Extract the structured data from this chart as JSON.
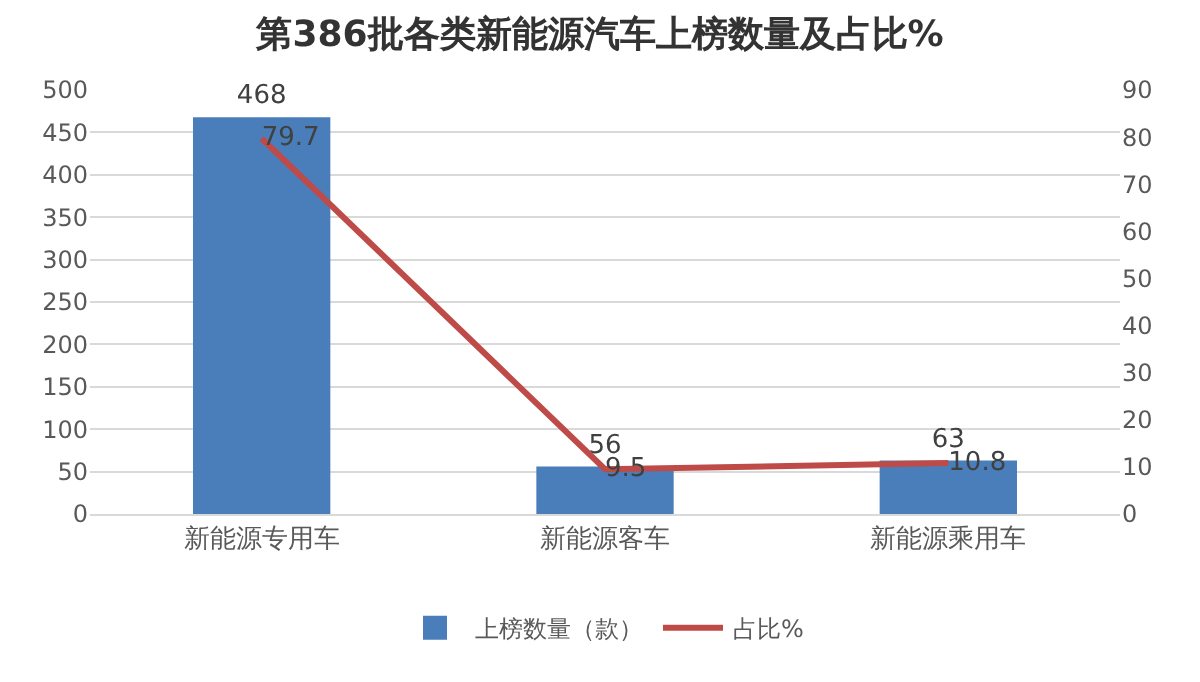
{
  "chart_data": {
    "type": "bar",
    "title": "第386批各类新能源汽车上榜数量及占比%",
    "categories": [
      "新能源专用车",
      "新能源客车",
      "新能源乘用车"
    ],
    "series": [
      {
        "name": "上榜数量（款）",
        "color": "#4a7ebb",
        "values": [
          468,
          56,
          63
        ]
      },
      {
        "name": "占比%",
        "type": "line",
        "axis": "y2",
        "color": "#be4b48",
        "values": [
          79.7,
          9.5,
          10.8
        ]
      }
    ],
    "ylim": [
      0,
      500
    ],
    "yticks": [
      0,
      50,
      100,
      150,
      200,
      250,
      300,
      350,
      400,
      450,
      500
    ],
    "y2lim": [
      0,
      90
    ],
    "y2ticks": [
      0,
      10,
      20,
      30,
      40,
      50,
      60,
      70,
      80,
      90
    ],
    "grid": "y",
    "legend": "bottom",
    "data_labels": true,
    "marker": "none",
    "line_style": "solid"
  }
}
